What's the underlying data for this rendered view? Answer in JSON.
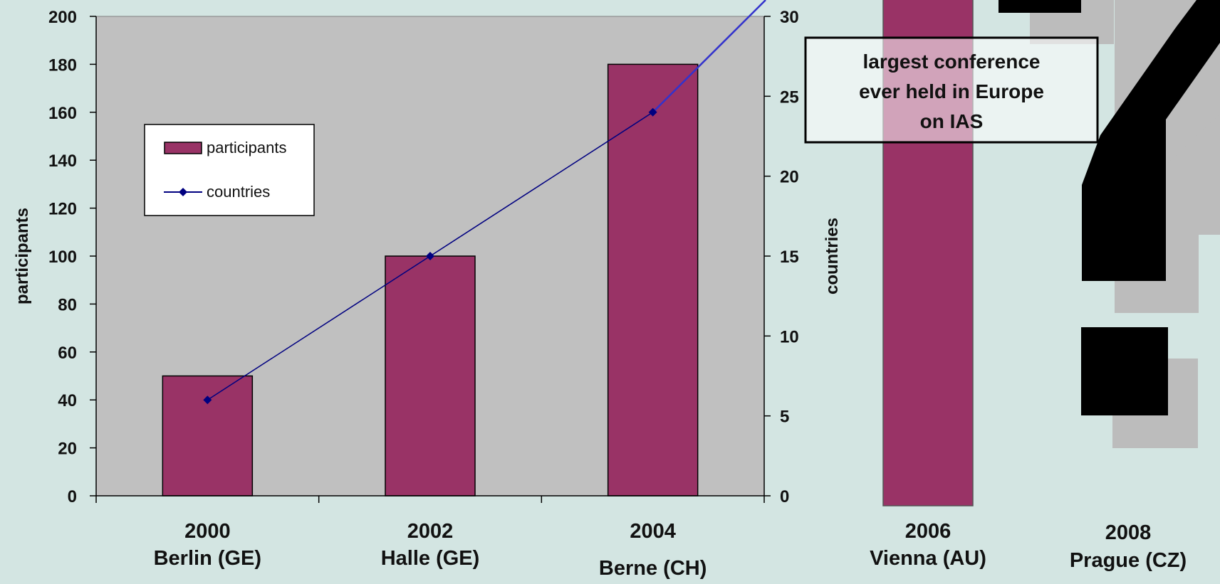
{
  "chart_data": {
    "type": "bar",
    "categories": [
      {
        "year": "2000",
        "city": "Berlin (GE)"
      },
      {
        "year": "2002",
        "city": "Halle (GE)"
      },
      {
        "year": "2004",
        "city": "Berne (CH)"
      },
      {
        "year": "2006",
        "city": "Vienna (AU)"
      },
      {
        "year": "2008",
        "city": "Prague (CZ)"
      }
    ],
    "series": [
      {
        "name": "participants",
        "type": "bar",
        "axis": "left",
        "values": [
          50,
          100,
          180,
          null,
          null
        ]
      },
      {
        "name": "countries",
        "type": "line",
        "axis": "right",
        "values": [
          6,
          15,
          24,
          null,
          null
        ]
      }
    ],
    "extra_bar": {
      "category": "2006",
      "note": "bar extends beyond the plot area"
    },
    "ylabel": "participants",
    "y2label": "countries",
    "ylim": [
      0,
      200
    ],
    "y2lim": [
      0,
      30
    ],
    "yticks": [
      0,
      20,
      40,
      60,
      80,
      100,
      120,
      140,
      160,
      180,
      200
    ],
    "y2ticks": [
      0,
      5,
      10,
      15,
      20,
      25,
      30
    ],
    "annotation": [
      "largest conference",
      "ever held in Europe",
      "on IAS"
    ],
    "legend_position": "upper-left",
    "grid": false
  },
  "colors": {
    "bar": "#993366",
    "line": "#000080",
    "line_extension": "#3333cc",
    "plot_bg": "#c0c0c0",
    "page_bg": "#d3e5e2"
  },
  "decoration": {
    "icon": "question-mark-icon"
  }
}
